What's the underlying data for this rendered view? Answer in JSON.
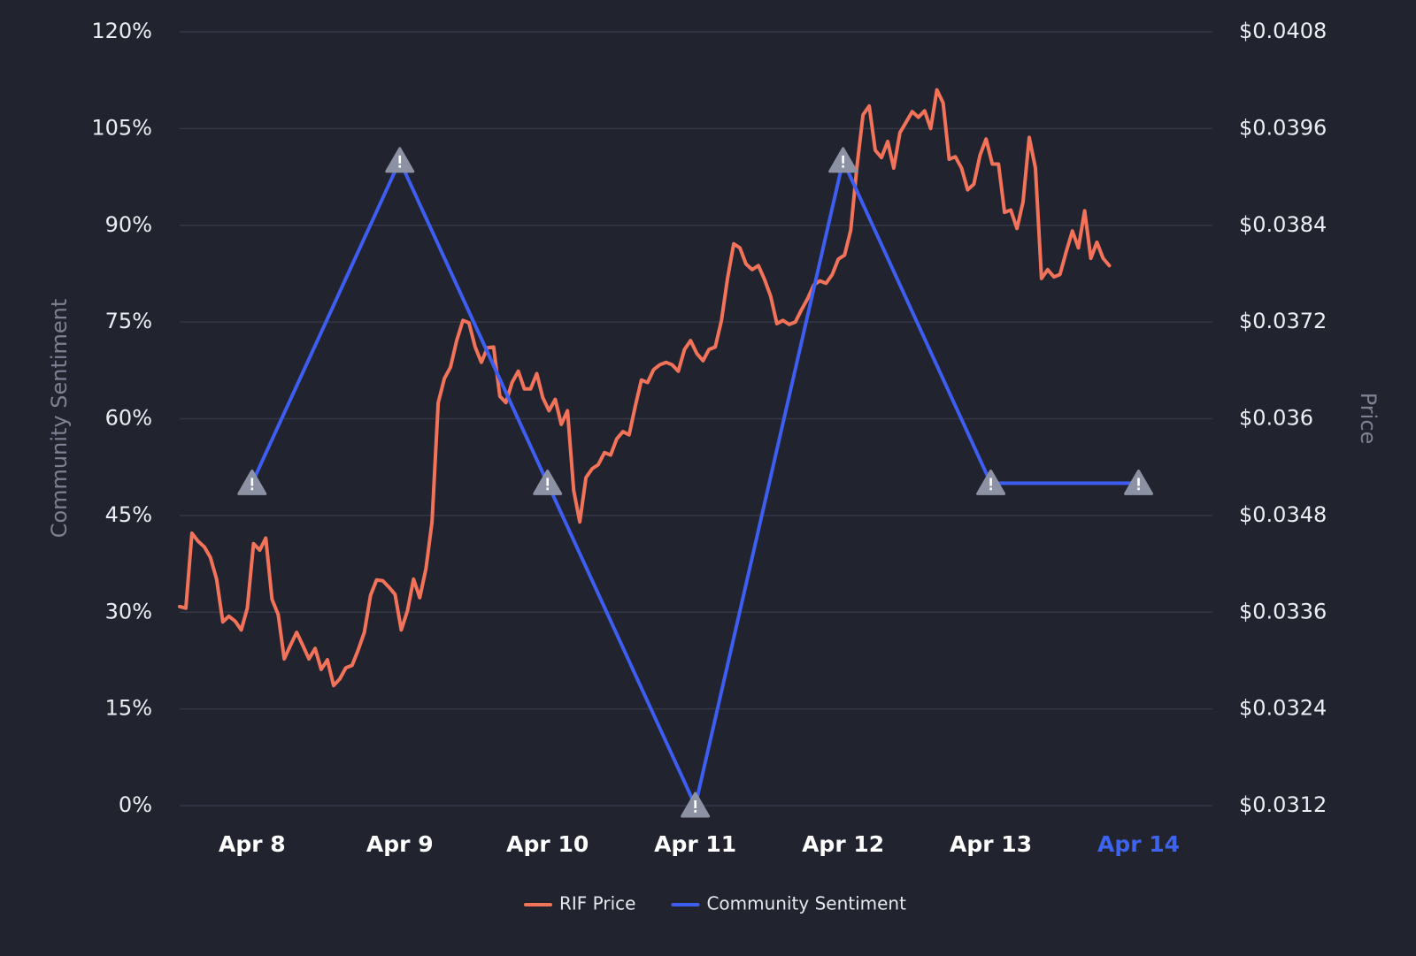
{
  "chart_data": {
    "type": "line",
    "y_label": "Community Sentiment",
    "y2_label": "Price",
    "xlim": [
      7.51,
      14.5
    ],
    "xticks": [
      {
        "value": 8,
        "label": "Apr 8"
      },
      {
        "value": 9,
        "label": "Apr 9"
      },
      {
        "value": 10,
        "label": "Apr 10"
      },
      {
        "value": 11,
        "label": "Apr 11"
      },
      {
        "value": 12,
        "label": "Apr 12"
      },
      {
        "value": 13,
        "label": "Apr 13"
      },
      {
        "value": 14,
        "label": "Apr 14"
      }
    ],
    "highlighted_xtick": 6,
    "highlight_color": "#3d64f0",
    "ylim": [
      0,
      120
    ],
    "yticks": [
      {
        "value": 0,
        "label": "0%"
      },
      {
        "value": 15,
        "label": "15%"
      },
      {
        "value": 30,
        "label": "30%"
      },
      {
        "value": 45,
        "label": "45%"
      },
      {
        "value": 60,
        "label": "60%"
      },
      {
        "value": 75,
        "label": "75%"
      },
      {
        "value": 90,
        "label": "90%"
      },
      {
        "value": 105,
        "label": "105%"
      },
      {
        "value": 120,
        "label": "120%"
      }
    ],
    "y2lim": [
      0.0312,
      0.0408
    ],
    "y2ticks": [
      {
        "value": 0.0312,
        "label": "$0.0312"
      },
      {
        "value": 0.0324,
        "label": "$0.0324"
      },
      {
        "value": 0.0336,
        "label": "$0.0336"
      },
      {
        "value": 0.0348,
        "label": "$0.0348"
      },
      {
        "value": 0.036,
        "label": "$0.036"
      },
      {
        "value": 0.0372,
        "label": "$0.0372"
      },
      {
        "value": 0.0384,
        "label": "$0.0384"
      },
      {
        "value": 0.0396,
        "label": "$0.0396"
      },
      {
        "value": 0.0408,
        "label": "$0.0408"
      }
    ],
    "grid": true,
    "legend": "bottom",
    "series": [
      {
        "name": "RIF Price",
        "color": "#f2735a",
        "axis": "y2",
        "x": [
          7.51,
          7.552,
          7.593,
          7.635,
          7.677,
          7.718,
          7.76,
          7.802,
          7.843,
          7.885,
          7.927,
          7.968,
          8.01,
          8.052,
          8.093,
          8.135,
          8.177,
          8.218,
          8.26,
          8.302,
          8.343,
          8.385,
          8.427,
          8.468,
          8.51,
          8.552,
          8.593,
          8.635,
          8.677,
          8.718,
          8.76,
          8.802,
          8.843,
          8.885,
          8.927,
          8.968,
          9.01,
          9.052,
          9.093,
          9.135,
          9.177,
          9.218,
          9.26,
          9.302,
          9.343,
          9.385,
          9.427,
          9.468,
          9.51,
          9.552,
          9.593,
          9.635,
          9.677,
          9.718,
          9.76,
          9.802,
          9.843,
          9.885,
          9.927,
          9.968,
          10.01,
          10.052,
          10.093,
          10.135,
          10.177,
          10.218,
          10.26,
          10.302,
          10.343,
          10.385,
          10.427,
          10.468,
          10.51,
          10.552,
          10.593,
          10.635,
          10.677,
          10.718,
          10.76,
          10.802,
          10.843,
          10.885,
          10.927,
          10.968,
          11.01,
          11.052,
          11.093,
          11.135,
          11.177,
          11.218,
          11.26,
          11.302,
          11.343,
          11.385,
          11.427,
          11.468,
          11.51,
          11.552,
          11.593,
          11.635,
          11.677,
          11.718,
          11.76,
          11.802,
          11.843,
          11.885,
          11.927,
          11.968,
          12.01,
          12.052,
          12.093,
          12.135,
          12.177,
          12.218,
          12.26,
          12.302,
          12.343,
          12.385,
          12.427,
          12.468,
          12.51,
          12.552,
          12.593,
          12.635,
          12.677,
          12.718,
          12.76,
          12.802,
          12.843,
          12.885,
          12.927,
          12.968,
          13.01,
          13.052,
          13.093,
          13.135,
          13.177,
          13.218,
          13.26,
          13.302,
          13.343,
          13.385,
          13.427,
          13.468,
          13.51,
          13.552,
          13.593,
          13.635,
          13.677,
          13.718,
          13.76,
          13.802
        ],
        "values": [
          0.03367,
          0.03365,
          0.03458,
          0.03448,
          0.03441,
          0.03428,
          0.03401,
          0.03348,
          0.03355,
          0.03349,
          0.03338,
          0.03365,
          0.03445,
          0.03437,
          0.03452,
          0.03376,
          0.03357,
          0.03302,
          0.03319,
          0.03335,
          0.03319,
          0.03302,
          0.03315,
          0.03289,
          0.03301,
          0.03269,
          0.03277,
          0.03291,
          0.03294,
          0.03313,
          0.03335,
          0.03381,
          0.034,
          0.03399,
          0.03391,
          0.03382,
          0.03338,
          0.03362,
          0.03401,
          0.03378,
          0.03414,
          0.03472,
          0.0362,
          0.0365,
          0.03664,
          0.03697,
          0.03722,
          0.03719,
          0.03689,
          0.0367,
          0.03688,
          0.03689,
          0.03628,
          0.0362,
          0.03645,
          0.03659,
          0.03637,
          0.03637,
          0.03656,
          0.03626,
          0.0361,
          0.03624,
          0.03593,
          0.0361,
          0.03511,
          0.03472,
          0.03527,
          0.03538,
          0.03543,
          0.03558,
          0.03555,
          0.03575,
          0.03584,
          0.0358,
          0.03615,
          0.03648,
          0.03645,
          0.03661,
          0.03667,
          0.0367,
          0.03667,
          0.03659,
          0.03686,
          0.03697,
          0.03681,
          0.03672,
          0.03686,
          0.03689,
          0.03722,
          0.03774,
          0.03817,
          0.03812,
          0.03792,
          0.03785,
          0.0379,
          0.03773,
          0.03752,
          0.03718,
          0.03722,
          0.03717,
          0.0372,
          0.03735,
          0.03749,
          0.03766,
          0.03771,
          0.03768,
          0.03779,
          0.03798,
          0.03803,
          0.03834,
          0.03911,
          0.03977,
          0.03988,
          0.03933,
          0.03924,
          0.03944,
          0.03911,
          0.03955,
          0.03968,
          0.03981,
          0.03974,
          0.03982,
          0.0396,
          0.04008,
          0.03992,
          0.03922,
          0.03925,
          0.03911,
          0.03884,
          0.03891,
          0.03927,
          0.03947,
          0.03916,
          0.03916,
          0.03856,
          0.03859,
          0.03836,
          0.03869,
          0.03949,
          0.03911,
          0.03774,
          0.03785,
          0.03776,
          0.03779,
          0.03807,
          0.03833,
          0.03812,
          0.03858,
          0.03799,
          0.03819,
          0.03799,
          0.0379
        ]
      },
      {
        "name": "Community Sentiment",
        "color": "#3d5ef0",
        "marker": "triangle",
        "x": [
          8,
          9,
          10,
          11,
          12,
          13,
          14
        ],
        "values": [
          50,
          100,
          50,
          0,
          100,
          50,
          50
        ]
      }
    ]
  }
}
